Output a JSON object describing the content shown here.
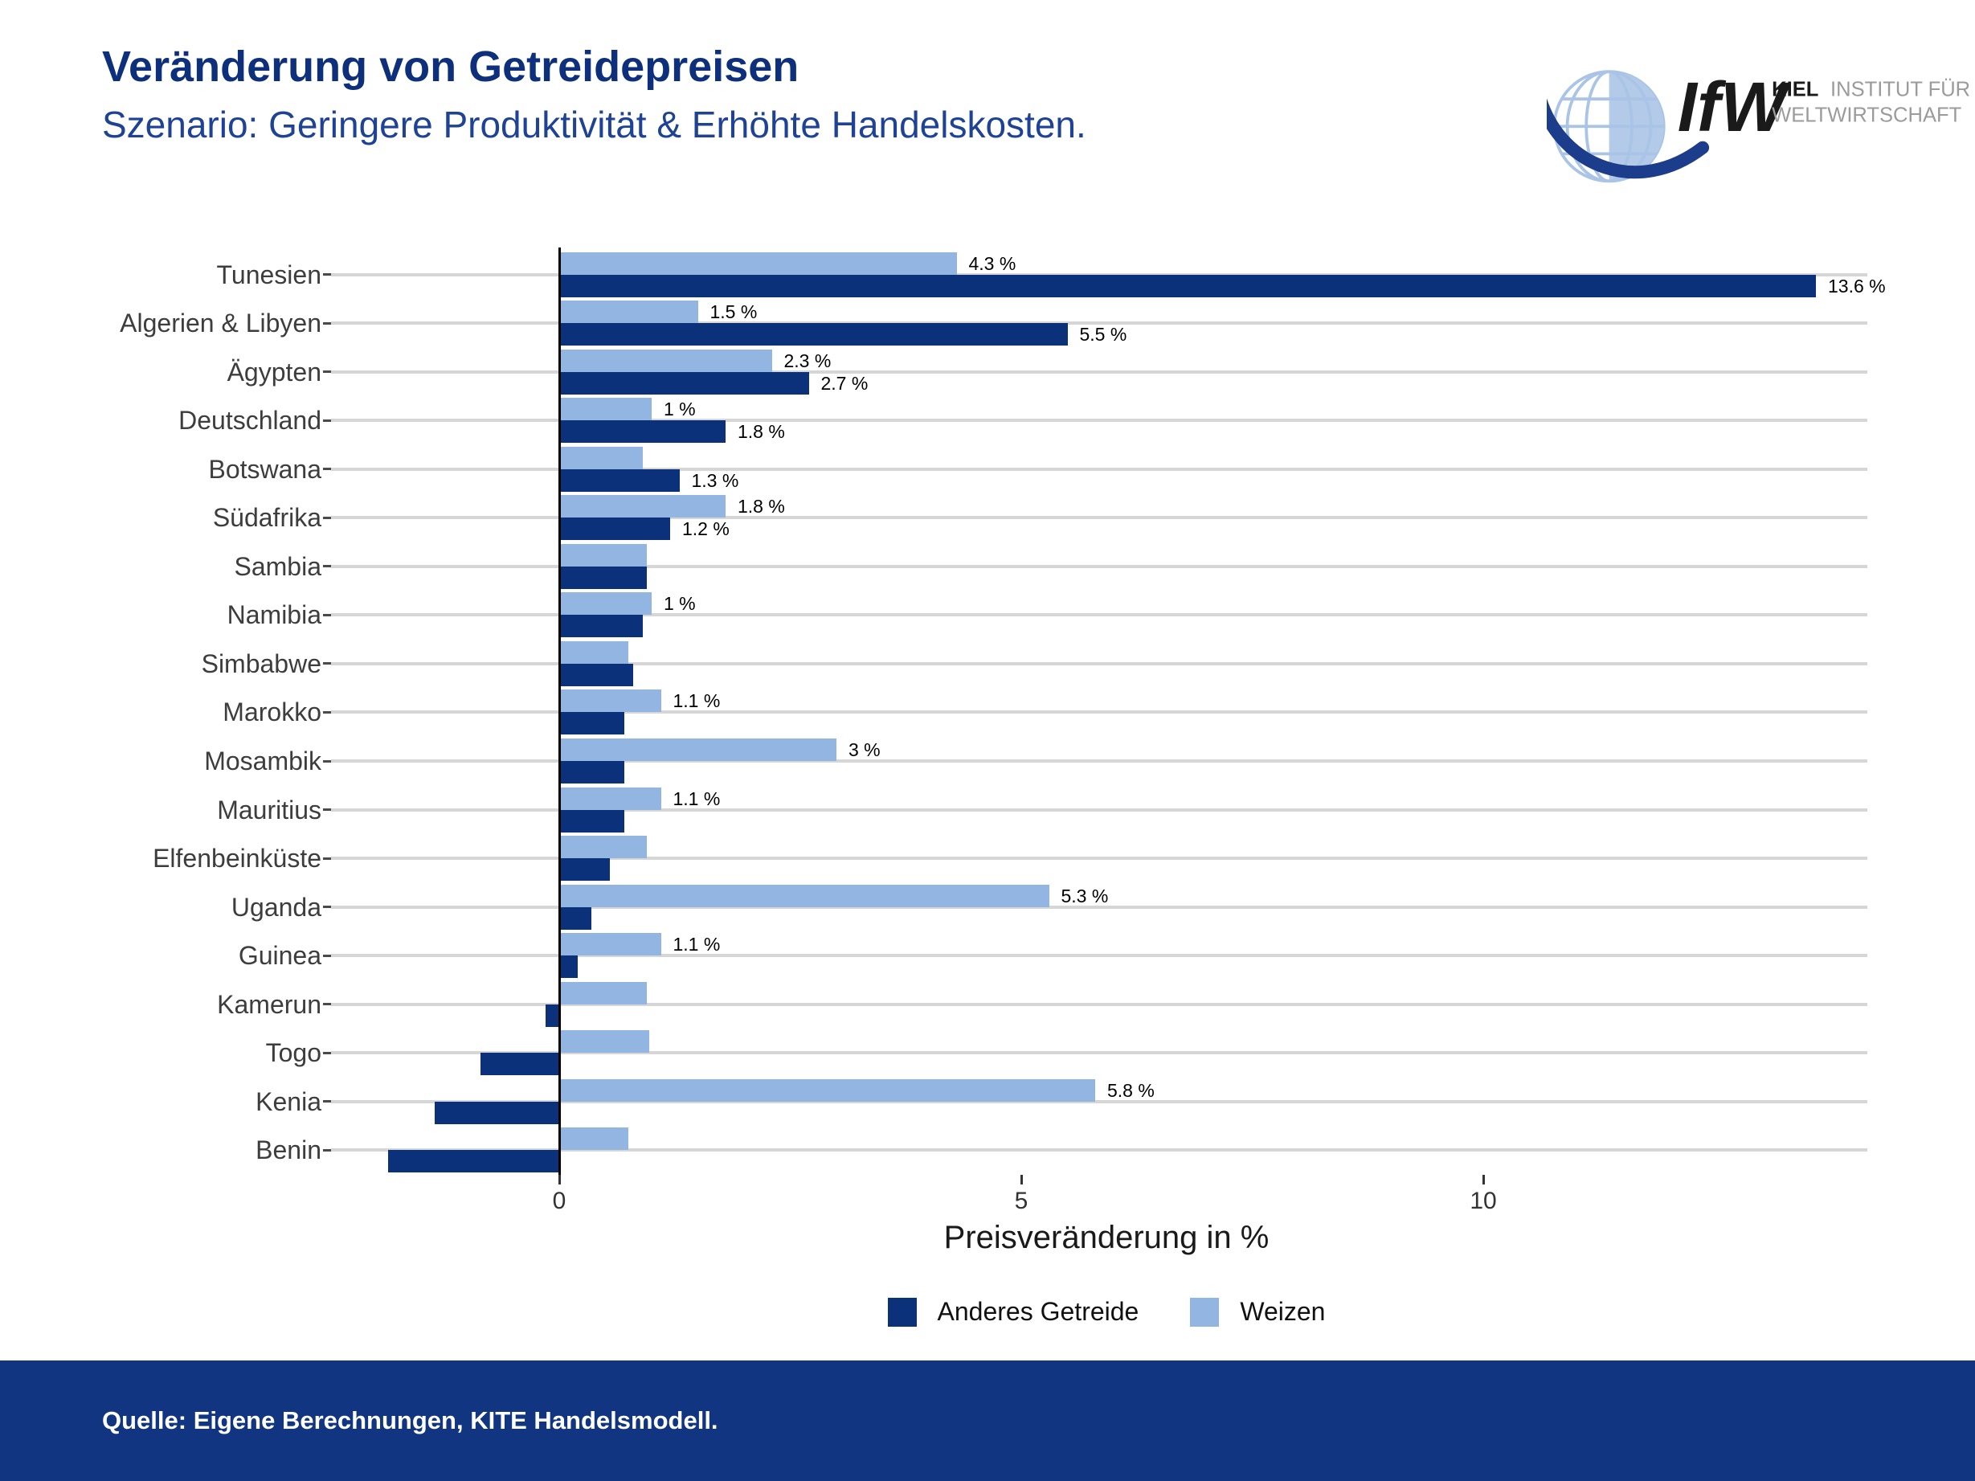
{
  "header": {
    "title": "Veränderung von Getreidepreisen",
    "subtitle": "Szenario: Geringere Produktivität & Erhöhte Handelskosten.",
    "title_color": "#0d2f7c",
    "subtitle_color": "#1e4296"
  },
  "logo": {
    "ifw": "IfW",
    "line1_bold": "KIEL",
    "line1_rest": "INSTITUT FÜR",
    "line2": "WELTWIRTSCHAFT",
    "text_dark": "#1a1a1a",
    "text_gray": "#9b9b9b",
    "globe_light": "#a9c4e6",
    "globe_fill": "#b3cbe9",
    "swoosh_dark": "#1c3c8c"
  },
  "chart_data": {
    "type": "bar",
    "orientation": "horizontal",
    "title": "",
    "xlabel": "Preisveränderung in %",
    "ylabel": "",
    "x_ticks": [
      0,
      5,
      10
    ],
    "xlim": [
      -2.35,
      14.2
    ],
    "grid": "horizontal category gridlines, light gray",
    "legend_position": "bottom center",
    "categories": [
      "Tunesien",
      "Algerien & Libyen",
      "Ägypten",
      "Deutschland",
      "Botswana",
      "Südafrika",
      "Sambia",
      "Namibia",
      "Simbabwe",
      "Marokko",
      "Mosambik",
      "Mauritius",
      "Elfenbeinküste",
      "Uganda",
      "Guinea",
      "Kamerun",
      "Togo",
      "Kenia",
      "Benin"
    ],
    "series": [
      {
        "name": "Anderes Getreide",
        "color": "#0a3179",
        "values": [
          13.6,
          5.5,
          2.7,
          1.8,
          1.3,
          1.2,
          0.95,
          0.9,
          0.8,
          0.7,
          0.7,
          0.7,
          0.55,
          0.35,
          0.2,
          -0.15,
          -0.85,
          -1.35,
          -1.85
        ],
        "labels": [
          "13.6 %",
          "5.5 %",
          "2.7 %",
          "1.8 %",
          "1.3 %",
          "1.2 %",
          "",
          "",
          "",
          "",
          "",
          "",
          "",
          "",
          "",
          "",
          "",
          "",
          ""
        ]
      },
      {
        "name": "Weizen",
        "color": "#93b5e2",
        "values": [
          4.3,
          1.5,
          2.3,
          1.0,
          0.9,
          1.8,
          0.95,
          1.0,
          0.75,
          1.1,
          3.0,
          1.1,
          0.95,
          5.3,
          1.1,
          0.95,
          0.97,
          5.8,
          0.75
        ],
        "labels": [
          "4.3 %",
          "1.5 %",
          "2.3 %",
          "1 %",
          "",
          "1.8 %",
          "",
          "1 %",
          "",
          "1.1 %",
          "3 %",
          "1.1 %",
          "",
          "5.3 %",
          "1.1 %",
          "",
          "",
          "5.8 %",
          ""
        ]
      }
    ],
    "grid_color": "#d6d6d6",
    "axis_line_color": "#000000",
    "tick_label_color": "#333333",
    "category_label_color": "#3d3d3d",
    "value_label_color": "#000000"
  },
  "footer": {
    "source": "Quelle: Eigene Berechnungen, KITE Handelsmodell.",
    "band_color": "#113580",
    "text_color": "#ffffff"
  }
}
